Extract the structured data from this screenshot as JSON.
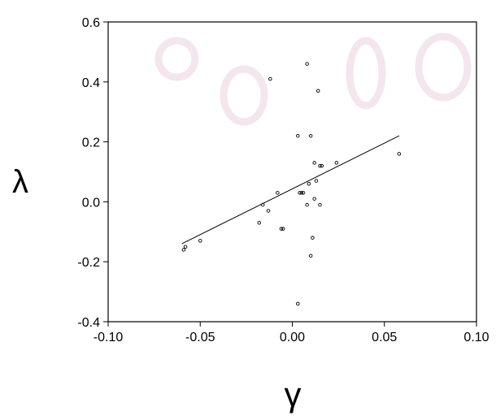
{
  "chart_data": {
    "type": "scatter",
    "title": "",
    "xlabel": "γ",
    "ylabel": "λ",
    "xlim": [
      -0.1,
      0.1
    ],
    "ylim": [
      -0.4,
      0.6
    ],
    "x_ticks": [
      -0.1,
      -0.05,
      0.0,
      0.05,
      0.1
    ],
    "x_tick_labels": [
      "-0.10",
      "-0.05",
      "0.00",
      "0.05",
      "0.10"
    ],
    "y_ticks": [
      -0.4,
      -0.2,
      0.0,
      0.2,
      0.4,
      0.6
    ],
    "y_tick_labels": [
      "-0.4",
      "-0.2",
      "0.0",
      "0.2",
      "0.4",
      "0.6"
    ],
    "grid": false,
    "legend": "none",
    "colors": {
      "axis": "#000000",
      "marker": "#000000",
      "line": "#000000",
      "watermark": "#f3e6ec"
    },
    "series": [
      {
        "points": [
          {
            "x": -0.059,
            "y": -0.16
          },
          {
            "x": -0.058,
            "y": -0.15
          },
          {
            "x": -0.05,
            "y": -0.13
          },
          {
            "x": -0.018,
            "y": -0.07
          },
          {
            "x": -0.016,
            "y": -0.01
          },
          {
            "x": -0.013,
            "y": -0.03
          },
          {
            "x": -0.012,
            "y": 0.41
          },
          {
            "x": -0.008,
            "y": 0.03
          },
          {
            "x": -0.006,
            "y": -0.09
          },
          {
            "x": -0.005,
            "y": -0.09
          },
          {
            "x": 0.003,
            "y": 0.22
          },
          {
            "x": 0.003,
            "y": -0.34
          },
          {
            "x": 0.004,
            "y": 0.03
          },
          {
            "x": 0.005,
            "y": 0.03
          },
          {
            "x": 0.006,
            "y": 0.03
          },
          {
            "x": 0.008,
            "y": -0.01
          },
          {
            "x": 0.008,
            "y": 0.46
          },
          {
            "x": 0.009,
            "y": 0.06
          },
          {
            "x": 0.01,
            "y": 0.22
          },
          {
            "x": 0.01,
            "y": -0.18
          },
          {
            "x": 0.011,
            "y": -0.12
          },
          {
            "x": 0.012,
            "y": 0.01
          },
          {
            "x": 0.012,
            "y": 0.13
          },
          {
            "x": 0.013,
            "y": 0.07
          },
          {
            "x": 0.014,
            "y": 0.37
          },
          {
            "x": 0.015,
            "y": -0.01
          },
          {
            "x": 0.015,
            "y": 0.12
          },
          {
            "x": 0.016,
            "y": 0.12
          },
          {
            "x": 0.024,
            "y": 0.13
          },
          {
            "x": 0.058,
            "y": 0.16
          }
        ]
      }
    ],
    "fit_line": {
      "x": [
        -0.06,
        0.058
      ],
      "y": [
        -0.14,
        0.22
      ]
    }
  }
}
